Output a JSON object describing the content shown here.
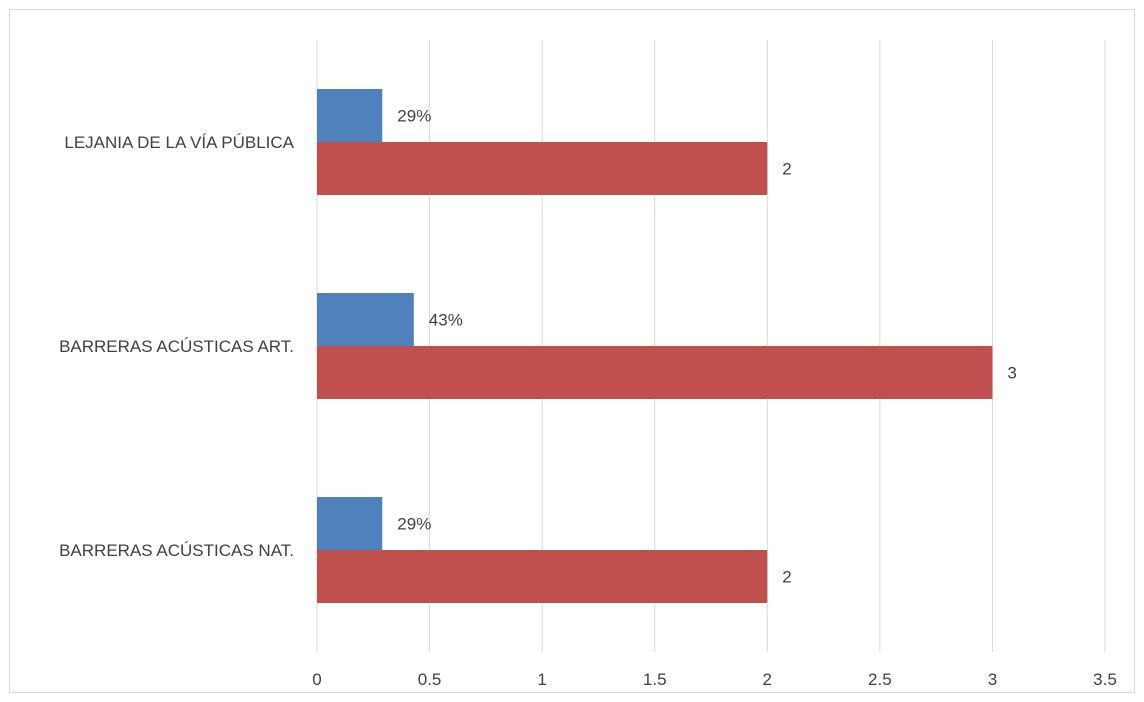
{
  "chart_data": {
    "type": "bar",
    "orientation": "horizontal",
    "title": "",
    "xlabel": "",
    "ylabel": "",
    "xlim": [
      0,
      3.5
    ],
    "x_ticks": [
      0,
      0.5,
      1,
      1.5,
      2,
      2.5,
      3,
      3.5
    ],
    "x_tick_labels": [
      "0",
      "0.5",
      "1",
      "1.5",
      "2",
      "2.5",
      "3",
      "3.5"
    ],
    "grid": "vertical",
    "legend": "none",
    "categories": [
      "LEJANIA DE LA VÍA PÚBLICA",
      "BARRERAS ACÚSTICAS ART.",
      "BARRERAS ACÚSTICAS NAT."
    ],
    "series": [
      {
        "color": "#4f81bd",
        "values": [
          0.29,
          0.43,
          0.29
        ],
        "labels": [
          "29%",
          "43%",
          "29%"
        ]
      },
      {
        "color": "#c0504d",
        "values": [
          2,
          3,
          2
        ],
        "labels": [
          "2",
          "3",
          "2"
        ]
      }
    ]
  }
}
